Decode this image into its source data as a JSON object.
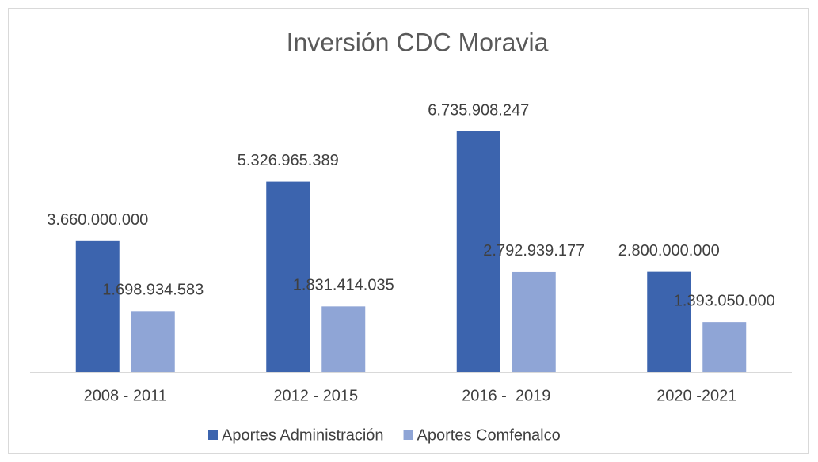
{
  "chart_data": {
    "type": "bar",
    "title": "Inversión CDC Moravia",
    "categories": [
      "2008 - 2011",
      "2012 - 2015",
      "2016 -  2019",
      "2020 -2021"
    ],
    "series": [
      {
        "name": "Aportes Administración",
        "color": "#3c64ae",
        "values": [
          3660000000,
          5326965389,
          6735908247,
          2800000000
        ],
        "value_labels": [
          "3.660.000.000",
          "5.326.965.389",
          "6.735.908.247",
          "2.800.000.000"
        ]
      },
      {
        "name": "Aportes Comfenalco",
        "color": "#8fa5d6",
        "values": [
          1698934583,
          1831414035,
          2792939177,
          1393050000
        ],
        "value_labels": [
          "1.698.934.583",
          "1.831.414.035",
          "2.792.939.177",
          "1.393.050.000"
        ]
      }
    ],
    "legend": "bottom"
  }
}
